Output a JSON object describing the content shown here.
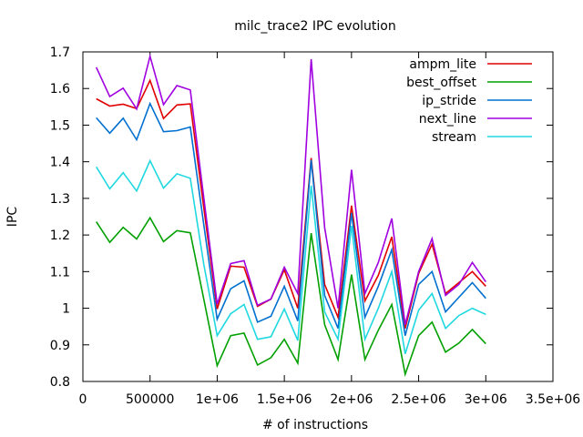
{
  "chart_data": {
    "type": "line",
    "title": "milc_trace2 IPC evolution",
    "xlabel": "# of instructions",
    "ylabel": "IPC",
    "xlim": [
      0,
      3500000
    ],
    "ylim": [
      0.8,
      1.7
    ],
    "xticks": [
      0,
      500000,
      1000000,
      1500000,
      2000000,
      2500000,
      3000000,
      3500000
    ],
    "xtick_labels": [
      "0",
      "500000",
      "1e+06",
      "1.5e+06",
      "2e+06",
      "2.5e+06",
      "3e+06",
      "3.5e+06"
    ],
    "yticks": [
      0.8,
      0.9,
      1.0,
      1.1,
      1.2,
      1.3,
      1.4,
      1.5,
      1.6,
      1.7
    ],
    "ytick_labels": [
      "0.8",
      "0.9",
      "1",
      "1.1",
      "1.2",
      "1.3",
      "1.4",
      "1.5",
      "1.6",
      "1.7"
    ],
    "grid": false,
    "legend_position": "top-right",
    "x": [
      100000,
      200000,
      300000,
      400000,
      500000,
      600000,
      700000,
      800000,
      900000,
      1000000,
      1100000,
      1200000,
      1300000,
      1400000,
      1500000,
      1600000,
      1700000,
      1800000,
      1900000,
      2000000,
      2100000,
      2200000,
      2300000,
      2400000,
      2500000,
      2600000,
      2700000,
      2800000,
      2900000,
      3000000
    ],
    "series": [
      {
        "name": "ampm_lite",
        "color": "#e00000",
        "values": [
          1.572,
          1.552,
          1.557,
          1.545,
          1.622,
          1.518,
          1.555,
          1.558,
          1.275,
          0.998,
          1.115,
          1.112,
          1.005,
          1.025,
          1.105,
          1.0,
          1.41,
          1.065,
          0.975,
          1.28,
          1.02,
          1.09,
          1.195,
          0.945,
          1.095,
          1.175,
          1.04,
          1.07,
          1.1,
          1.06
        ]
      },
      {
        "name": "best_offset",
        "color": "#00a000",
        "values": [
          1.236,
          1.18,
          1.221,
          1.189,
          1.247,
          1.182,
          1.212,
          1.206,
          1.025,
          0.843,
          0.925,
          0.932,
          0.845,
          0.865,
          0.915,
          0.85,
          1.205,
          0.955,
          0.86,
          1.092,
          0.86,
          0.94,
          1.01,
          0.82,
          0.925,
          0.962,
          0.88,
          0.905,
          0.942,
          0.903
        ]
      },
      {
        "name": "ip_stride",
        "color": "#0070d0",
        "values": [
          1.52,
          1.478,
          1.519,
          1.46,
          1.559,
          1.482,
          1.485,
          1.495,
          1.228,
          0.97,
          1.053,
          1.075,
          0.962,
          0.978,
          1.06,
          0.965,
          1.405,
          1.035,
          0.945,
          1.26,
          0.975,
          1.06,
          1.16,
          0.925,
          1.065,
          1.1,
          0.99,
          1.03,
          1.07,
          1.027
        ]
      },
      {
        "name": "next_line",
        "color": "#a000e0",
        "values": [
          1.658,
          1.578,
          1.601,
          1.544,
          1.688,
          1.556,
          1.608,
          1.596,
          1.302,
          1.011,
          1.122,
          1.13,
          1.008,
          1.025,
          1.112,
          1.04,
          1.68,
          1.22,
          1.0,
          1.378,
          1.04,
          1.125,
          1.245,
          0.955,
          1.1,
          1.19,
          1.035,
          1.065,
          1.125,
          1.072
        ]
      },
      {
        "name": "stream",
        "color": "#20d8e0",
        "values": [
          1.386,
          1.326,
          1.37,
          1.32,
          1.403,
          1.328,
          1.367,
          1.355,
          1.12,
          0.925,
          0.985,
          1.01,
          0.915,
          0.922,
          0.998,
          0.912,
          1.335,
          0.99,
          0.915,
          1.225,
          0.915,
          1.0,
          1.1,
          0.875,
          0.995,
          1.04,
          0.945,
          0.98,
          1.0,
          0.983
        ]
      }
    ]
  }
}
